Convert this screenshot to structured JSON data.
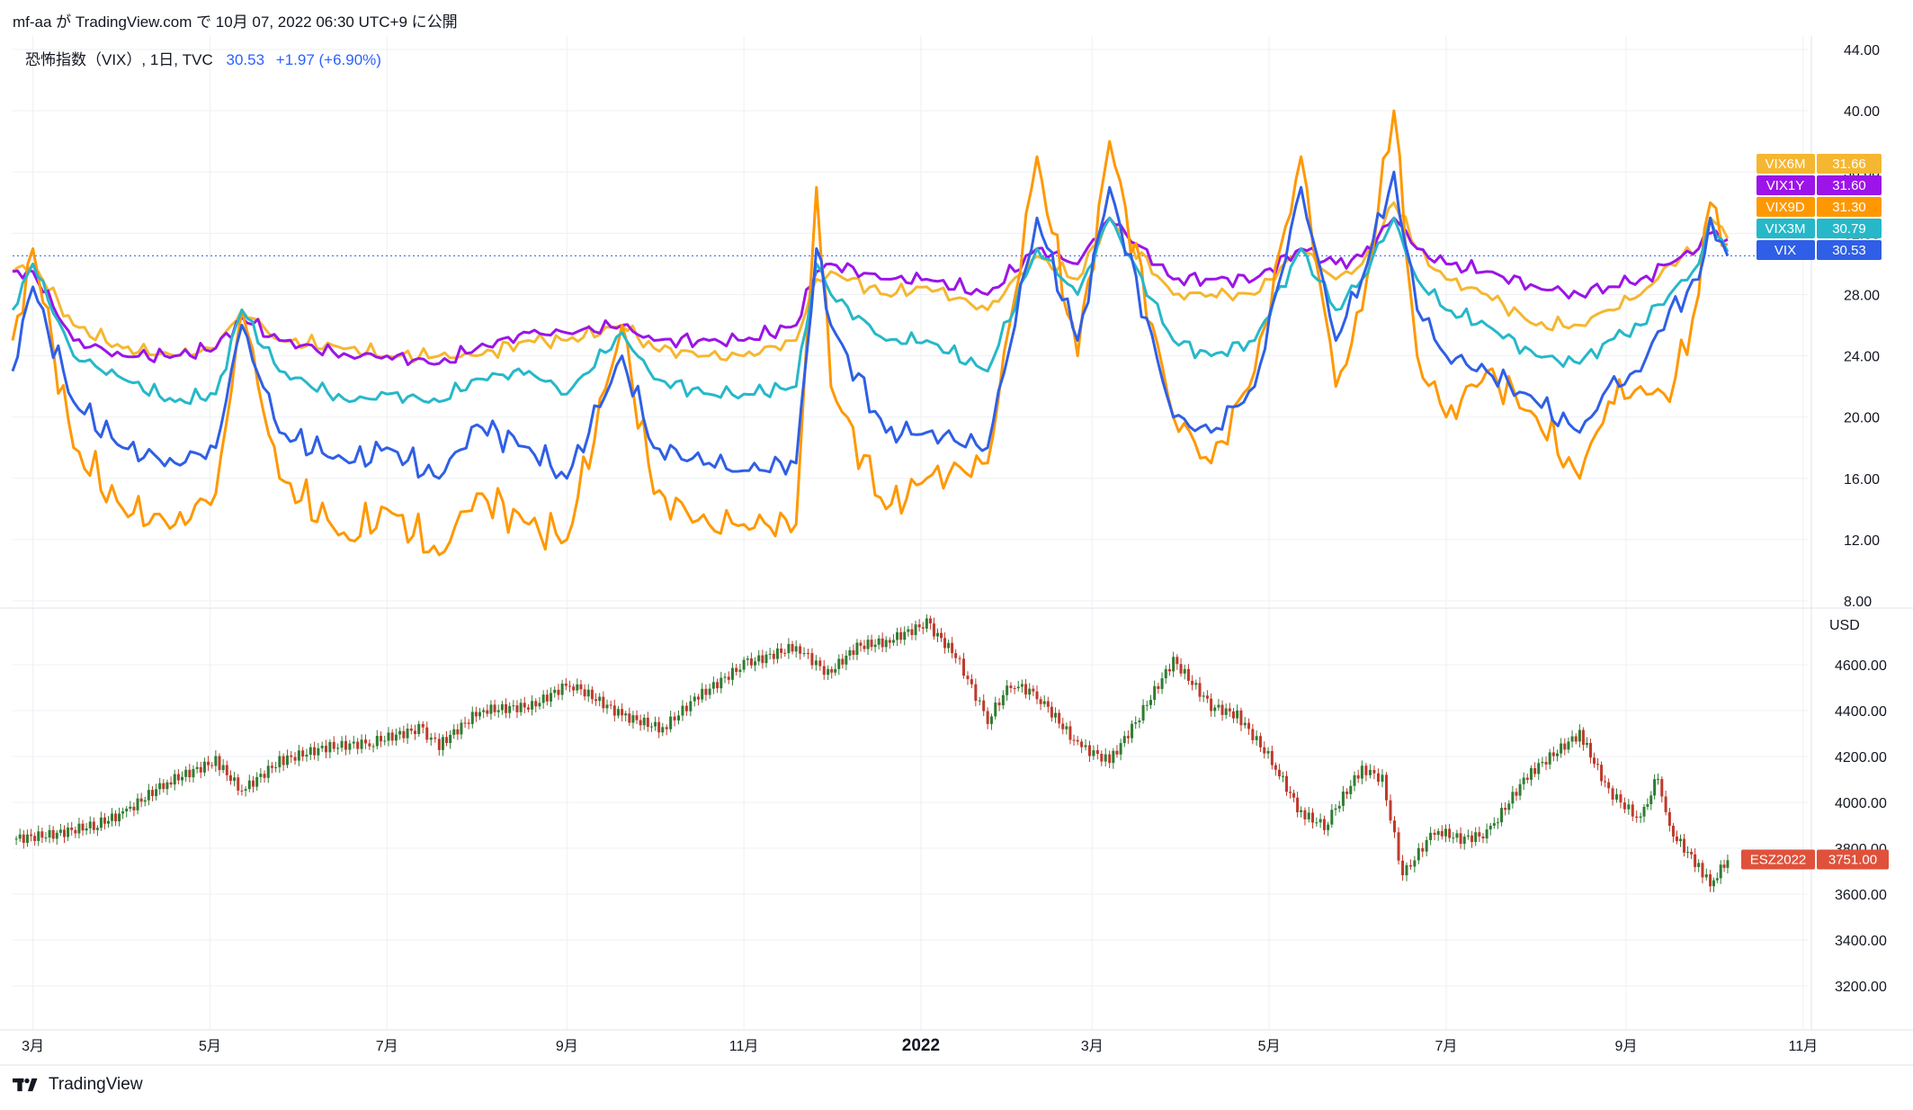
{
  "header": {
    "text": "mf-aa が TradingView.com で 10月 07, 2022 06:30 UTC+9 に公開"
  },
  "legend": {
    "symbol": "恐怖指数（VIX）, 1日, TVC",
    "price": "30.53",
    "change": "+1.97 (+6.90%)"
  },
  "footer": {
    "brand": "TradingView"
  },
  "colors": {
    "VIX": "#2f5fe6",
    "VIX9D": "#ff9800",
    "VIX3M": "#26b8c9",
    "VIX6M": "#f5b731",
    "VIX1Y": "#9c14e8",
    "up": "#2e7d32",
    "down": "#c0392b",
    "esTag": "#e0513b",
    "grid": "#eef0f4",
    "axisText": "#131722"
  },
  "chart_data": [
    {
      "type": "line",
      "title": "恐怖指数（VIX）, 1日, TVC",
      "ylim": [
        8,
        44
      ],
      "yticks": [
        "44.00",
        "40.00",
        "36.00",
        "32.00",
        "28.00",
        "24.00",
        "20.00",
        "16.00",
        "12.00",
        "8.00"
      ],
      "y_tick_values": [
        44,
        40,
        36,
        32,
        28,
        24,
        20,
        16,
        12,
        8
      ],
      "x_dates": [
        "2021-02-22",
        "2021-03-01",
        "2021-03-15",
        "2021-04-01",
        "2021-04-19",
        "2021-05-03",
        "2021-05-12",
        "2021-05-25",
        "2021-06-18",
        "2021-07-01",
        "2021-07-19",
        "2021-08-01",
        "2021-08-19",
        "2021-09-01",
        "2021-09-20",
        "2021-10-01",
        "2021-10-20",
        "2021-11-01",
        "2021-11-19",
        "2021-11-26",
        "2021-12-01",
        "2021-12-20",
        "2022-01-03",
        "2022-01-24",
        "2022-02-10",
        "2022-02-24",
        "2022-03-07",
        "2022-03-29",
        "2022-04-11",
        "2022-04-26",
        "2022-05-12",
        "2022-05-24",
        "2022-06-02",
        "2022-06-13",
        "2022-06-21",
        "2022-07-01",
        "2022-07-15",
        "2022-08-01",
        "2022-08-16",
        "2022-08-26",
        "2022-09-06",
        "2022-09-16",
        "2022-09-26",
        "2022-09-30",
        "2022-10-06"
      ],
      "series": [
        {
          "name": "VIX6M",
          "last": "31.66",
          "values": [
            29.5,
            30,
            26,
            24.5,
            24,
            24.5,
            27,
            25,
            24.5,
            24,
            24,
            24,
            25,
            25,
            26,
            24.5,
            24,
            24,
            25,
            29,
            29.5,
            28,
            28.5,
            27,
            30.5,
            29,
            33,
            28,
            28,
            28,
            31,
            29,
            30,
            34,
            31,
            29,
            28,
            26,
            26,
            27,
            28,
            30,
            31,
            33,
            31.66
          ]
        },
        {
          "name": "VIX1Y",
          "last": "31.60",
          "values": [
            29.5,
            29.5,
            25,
            24,
            24,
            24.5,
            26.5,
            25,
            24,
            24,
            23.5,
            24.5,
            25.5,
            25.5,
            26,
            25,
            25,
            25,
            26,
            29.5,
            30,
            29,
            29,
            28,
            31,
            30,
            33,
            29,
            29,
            29,
            31,
            30,
            30.5,
            33,
            31,
            30,
            29.5,
            28.5,
            28,
            28.5,
            29,
            30,
            31,
            32,
            31.6
          ]
        },
        {
          "name": "VIX9D",
          "last": "31.30",
          "values": [
            25,
            31,
            18,
            14,
            13,
            15,
            27,
            16,
            12,
            14,
            11,
            15,
            13,
            12,
            26,
            15,
            13,
            13,
            13,
            35,
            22,
            14,
            16,
            17,
            37,
            24,
            38,
            20,
            17,
            23,
            37,
            22,
            27,
            40,
            24,
            20,
            23,
            20,
            16,
            21,
            22,
            21,
            28,
            34,
            31.3
          ]
        },
        {
          "name": "VIX3M",
          "last": "30.79",
          "values": [
            27,
            30,
            24,
            22.5,
            21,
            21.5,
            27,
            23,
            21,
            21.5,
            21,
            22.5,
            23,
            21.5,
            25.5,
            22.5,
            21.5,
            21.5,
            22,
            30,
            28,
            25,
            25,
            23,
            31,
            28,
            33,
            25,
            24,
            25,
            31,
            27,
            29,
            33,
            29,
            27,
            26,
            24,
            23.5,
            25,
            26,
            28,
            30,
            33,
            30.79
          ]
        },
        {
          "name": "VIX",
          "last": "30.53",
          "values": [
            23,
            28.5,
            21,
            18,
            17,
            18,
            26,
            19,
            17,
            18,
            16,
            19.5,
            18,
            16,
            24,
            18,
            17,
            16.5,
            17,
            31,
            26,
            19,
            19,
            18,
            33,
            25,
            35,
            20,
            19,
            22,
            35,
            25,
            29,
            36,
            27,
            24,
            23,
            21,
            19,
            22,
            23,
            27,
            29,
            33,
            30.53
          ]
        }
      ],
      "last_vix_level": 30.53
    },
    {
      "type": "candlestick",
      "title": "ESZ2022",
      "unit": "USD",
      "ylim": [
        3050,
        4710
      ],
      "yticks": [
        "4600.00",
        "4400.00",
        "4200.00",
        "4000.00",
        "3800.00",
        "3600.00",
        "3400.00",
        "3200.00"
      ],
      "y_tick_values": [
        4600,
        4400,
        4200,
        4000,
        3800,
        3600,
        3400,
        3200
      ],
      "last": "3751.00",
      "x_dates": [
        "2021-02-22",
        "2021-03-08",
        "2021-03-22",
        "2021-04-01",
        "2021-04-15",
        "2021-05-03",
        "2021-05-12",
        "2021-05-25",
        "2021-06-10",
        "2021-06-25",
        "2021-07-12",
        "2021-07-19",
        "2021-08-02",
        "2021-08-20",
        "2021-09-02",
        "2021-09-20",
        "2021-10-04",
        "2021-10-15",
        "2021-11-01",
        "2021-11-19",
        "2021-11-30",
        "2021-12-10",
        "2021-12-20",
        "2022-01-03",
        "2022-01-13",
        "2022-01-24",
        "2022-02-01",
        "2022-02-10",
        "2022-02-24",
        "2022-03-07",
        "2022-03-16",
        "2022-03-29",
        "2022-04-11",
        "2022-04-20",
        "2022-05-02",
        "2022-05-12",
        "2022-05-20",
        "2022-06-02",
        "2022-06-09",
        "2022-06-16",
        "2022-06-27",
        "2022-07-06",
        "2022-07-15",
        "2022-07-29",
        "2022-08-16",
        "2022-08-26",
        "2022-09-06",
        "2022-09-12",
        "2022-09-16",
        "2022-09-26",
        "2022-09-30",
        "2022-10-06"
      ],
      "closes": [
        3840,
        3860,
        3900,
        3950,
        4080,
        4180,
        4050,
        4180,
        4240,
        4260,
        4320,
        4250,
        4400,
        4420,
        4520,
        4380,
        4320,
        4450,
        4600,
        4680,
        4560,
        4680,
        4700,
        4780,
        4640,
        4360,
        4520,
        4470,
        4250,
        4180,
        4350,
        4620,
        4420,
        4380,
        4180,
        3950,
        3900,
        4150,
        4100,
        3680,
        3880,
        3840,
        3860,
        4120,
        4300,
        4050,
        3920,
        4120,
        3880,
        3720,
        3640,
        3751
      ]
    }
  ],
  "x_axis_labels": [
    "3月",
    "5月",
    "7月",
    "9月",
    "11月",
    "2022",
    "3月",
    "5月",
    "7月",
    "9月",
    "11月"
  ],
  "x_axis_label_dates": [
    "2021-03-01",
    "2021-05-01",
    "2021-07-01",
    "2021-09-01",
    "2021-11-01",
    "2022-01-01",
    "2022-03-01",
    "2022-05-01",
    "2022-07-01",
    "2022-09-01",
    "2022-11-01"
  ]
}
